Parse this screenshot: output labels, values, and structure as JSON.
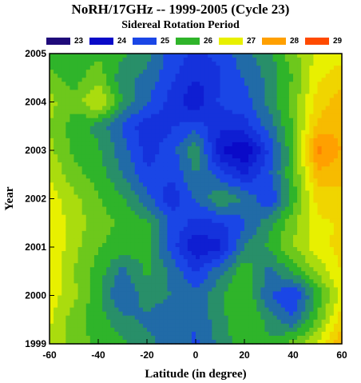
{
  "chart_data": {
    "type": "heatmap",
    "title": "NoRH/17GHz -- 1999-2005 (Cycle 23)",
    "subtitle": "Sidereal Rotation Period",
    "xlabel": "Latitude (in degree)",
    "ylabel": "Year",
    "xlim": [
      -60,
      60
    ],
    "ylim": [
      1999,
      2005
    ],
    "xticks": [
      "-60",
      "-40",
      "-20",
      "0",
      "20",
      "40",
      "60"
    ],
    "yticks": [
      "1999",
      "2000",
      "2001",
      "2002",
      "2003",
      "2004",
      "2005"
    ],
    "legend": {
      "placement": "top",
      "levels": [
        {
          "label": "23",
          "value": 23,
          "color": "#1f0a7a"
        },
        {
          "label": "24",
          "value": 24,
          "color": "#0a0ac8"
        },
        {
          "label": "25",
          "value": 25,
          "color": "#1a46e6"
        },
        {
          "label": "26",
          "value": 26,
          "color": "#2fb42a"
        },
        {
          "label": "27",
          "value": 27,
          "color": "#e8f000"
        },
        {
          "label": "28",
          "value": 28,
          "color": "#ffa000"
        },
        {
          "label": "29",
          "value": 29,
          "color": "#ff4a00"
        }
      ]
    },
    "x": [
      -60,
      -50,
      -40,
      -30,
      -20,
      -10,
      0,
      10,
      20,
      30,
      40,
      50,
      60
    ],
    "y": [
      1999,
      1999.5,
      2000,
      2000.5,
      2001,
      2001.5,
      2002,
      2002.5,
      2003,
      2003.5,
      2004,
      2004.5,
      2005
    ],
    "z": [
      [
        26.8,
        26.3,
        26.1,
        25.9,
        25.6,
        25.4,
        25.1,
        25.6,
        26.1,
        25.9,
        26.3,
        26.9,
        27.8
      ],
      [
        26.9,
        26.3,
        26.0,
        25.6,
        25.4,
        25.2,
        25.2,
        25.7,
        26.2,
        25.7,
        25.2,
        26.2,
        27.4
      ],
      [
        27.0,
        26.6,
        25.9,
        25.1,
        25.7,
        25.5,
        25.3,
        25.8,
        26.2,
        25.2,
        24.8,
        25.9,
        27.0
      ],
      [
        27.1,
        26.5,
        26.0,
        25.4,
        25.9,
        25.4,
        24.8,
        25.4,
        26.1,
        25.4,
        25.9,
        26.6,
        27.2
      ],
      [
        27.2,
        26.6,
        26.2,
        26.0,
        26.0,
        25.0,
        24.2,
        24.4,
        25.5,
        25.9,
        26.5,
        27.0,
        27.3
      ],
      [
        27.1,
        26.7,
        26.3,
        26.1,
        25.9,
        25.1,
        24.7,
        24.8,
        25.1,
        25.7,
        26.4,
        27.1,
        27.2
      ],
      [
        27.0,
        26.6,
        26.2,
        25.9,
        25.3,
        24.6,
        25.2,
        25.8,
        25.5,
        24.8,
        26.0,
        27.3,
        27.4
      ],
      [
        26.8,
        26.3,
        26.0,
        25.5,
        24.9,
        24.9,
        25.5,
        25.0,
        24.5,
        25.1,
        26.1,
        27.7,
        27.6
      ],
      [
        26.6,
        26.1,
        25.9,
        25.3,
        24.7,
        25.0,
        25.8,
        24.2,
        23.8,
        24.9,
        26.1,
        28.3,
        27.8
      ],
      [
        26.5,
        26.0,
        25.7,
        25.1,
        24.6,
        24.8,
        25.0,
        24.6,
        24.7,
        25.3,
        26.2,
        27.6,
        27.8
      ],
      [
        26.6,
        26.3,
        26.9,
        25.8,
        25.2,
        24.7,
        24.2,
        24.9,
        25.0,
        25.6,
        26.3,
        27.3,
        27.7
      ],
      [
        26.3,
        26.0,
        26.4,
        25.6,
        25.4,
        24.9,
        24.5,
        24.8,
        25.2,
        25.6,
        26.2,
        27.1,
        27.4
      ],
      [
        26.0,
        25.9,
        26.1,
        25.9,
        25.6,
        25.0,
        24.8,
        24.9,
        25.4,
        25.7,
        26.4,
        26.9,
        27.0
      ]
    ]
  }
}
